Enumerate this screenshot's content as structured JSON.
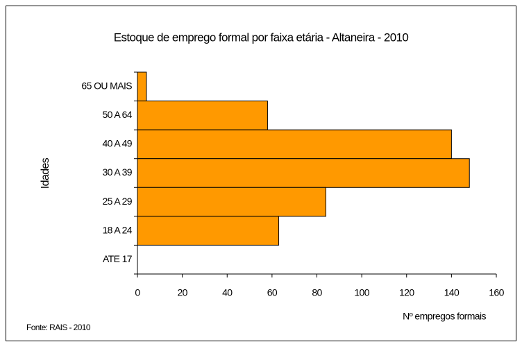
{
  "chart_data": {
    "type": "bar",
    "orientation": "horizontal",
    "title": "Estoque de emprego formal por faixa etária - Altaneira - 2010",
    "categories": [
      "65 OU MAIS",
      "50 A 64",
      "40 A 49",
      "30 A 39",
      "25 A 29",
      "18 A 24",
      "ATE 17"
    ],
    "values": [
      4,
      58,
      140,
      148,
      84,
      63,
      0
    ],
    "color": "#ff9900",
    "xlim": [
      0,
      160
    ],
    "xticks": [
      0,
      20,
      40,
      60,
      80,
      100,
      120,
      140,
      160
    ],
    "x_label": "Nº empregos formais",
    "y_label": "Idades",
    "source": "Fonte: RAIS - 2010"
  }
}
